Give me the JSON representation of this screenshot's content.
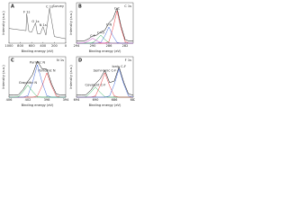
{
  "chart_data": [
    {
      "type": "line",
      "panel": "A",
      "title": "Survey",
      "xlabel": "Binding energy (eV)",
      "ylabel": "Intensity (a.u.)",
      "x": [
        1000,
        900,
        800,
        700,
        688,
        650,
        600,
        532,
        500,
        450,
        400,
        350,
        285,
        200,
        100,
        0
      ],
      "xlim": [
        1000,
        0
      ],
      "ylim": [
        0,
        110
      ],
      "xticks": [
        1000,
        800,
        600,
        400,
        200,
        0
      ],
      "series": [
        {
          "color": "#555555",
          "values": [
            40,
            38,
            36,
            34,
            80,
            32,
            30,
            55,
            26,
            25,
            45,
            22,
            95,
            18,
            15,
            12
          ]
        }
      ],
      "annotations": [
        {
          "text": "F 1s",
          "x": 688,
          "y": 84
        },
        {
          "text": "O 1s",
          "x": 532,
          "y": 59
        },
        {
          "text": "N 1s",
          "x": 400,
          "y": 49
        },
        {
          "text": "C 1s",
          "x": 285,
          "y": 99
        }
      ]
    },
    {
      "type": "line",
      "panel": "B",
      "title": "C 1s",
      "xlabel": "Binding energy (eV)",
      "ylabel": "Intensity (a.u.)",
      "x": [
        294,
        293,
        292,
        291,
        290,
        289,
        288,
        287,
        286,
        285,
        284,
        283,
        282,
        281,
        280
      ],
      "xlim": [
        294,
        280
      ],
      "ylim": [
        0,
        100
      ],
      "xticks": [
        294,
        290,
        286,
        282
      ],
      "series": [
        {
          "color": "#000000",
          "values": [
            5,
            5,
            6,
            11,
            18,
            20,
            28,
            32,
            50,
            60,
            87,
            42,
            9,
            5,
            5
          ]
        },
        {
          "name": "C-C",
          "color": "#e8262a",
          "values": [
            0,
            0,
            0,
            0,
            0,
            0,
            0,
            0,
            4,
            37,
            80,
            37,
            4,
            0,
            0
          ]
        },
        {
          "name": "C-N",
          "color": "#2a56d6",
          "values": [
            0,
            0,
            0,
            0,
            0,
            0,
            2,
            18,
            40,
            18,
            2,
            0,
            0,
            0,
            0
          ]
        },
        {
          "name": "C=O",
          "color": "#1aa84a",
          "values": [
            0,
            0,
            0,
            0,
            1,
            9,
            20,
            9,
            1,
            0,
            0,
            0,
            0,
            0,
            0
          ]
        },
        {
          "name": "C-F",
          "color": "#c429c4",
          "values": [
            0,
            0,
            1,
            6,
            12,
            6,
            1,
            0,
            0,
            0,
            0,
            0,
            0,
            0,
            0
          ]
        }
      ]
    },
    {
      "type": "line",
      "panel": "C",
      "title": "N 1s",
      "xlabel": "Binding energy (eV)",
      "ylabel": "Intensity (a.u.)",
      "x": [
        406,
        405,
        404,
        403,
        402,
        401,
        400,
        399,
        398,
        397,
        396,
        395,
        394
      ],
      "xlim": [
        406,
        394
      ],
      "ylim": [
        0,
        100
      ],
      "xticks": [
        406,
        402,
        398,
        394
      ],
      "series": [
        {
          "color": "#000000",
          "values": [
            5,
            5,
            6,
            19,
            39,
            56,
            89,
            70,
            69,
            33,
            8,
            5,
            5
          ]
        },
        {
          "name": "Pyridinic N",
          "color": "#e8262a",
          "values": [
            0,
            0,
            0,
            0,
            0,
            0,
            3,
            28,
            60,
            28,
            3,
            0,
            0
          ]
        },
        {
          "name": "Pyrrolic N",
          "color": "#2a56d6",
          "values": [
            0,
            0,
            0,
            0,
            4,
            37,
            80,
            37,
            4,
            0,
            0,
            0,
            0
          ]
        },
        {
          "name": "Graphitic N",
          "color": "#1aa84a",
          "values": [
            0,
            0,
            1,
            14,
            30,
            14,
            1,
            0,
            0,
            0,
            0,
            0,
            0
          ]
        }
      ]
    },
    {
      "type": "line",
      "panel": "D",
      "title": "F 1s",
      "xlabel": "Binding energy (eV)",
      "ylabel": "Intensity (a.u.)",
      "x": [
        694,
        693,
        692,
        691,
        690,
        689,
        688,
        687,
        686,
        685,
        684,
        683,
        682
      ],
      "xlim": [
        694,
        682
      ],
      "ylim": [
        0,
        100
      ],
      "xticks": [
        694,
        690,
        686,
        682
      ],
      "series": [
        {
          "color": "#000000",
          "values": [
            5,
            5,
            6,
            17,
            33,
            45,
            66,
            36,
            40,
            75,
            37,
            8,
            5
          ]
        },
        {
          "name": "Covalent C-F",
          "color": "#1aa84a",
          "values": [
            0,
            0,
            1,
            12,
            25,
            12,
            1,
            0,
            0,
            0,
            0,
            0,
            0
          ]
        },
        {
          "name": "Semi-ionic C-F",
          "color": "#e8262a",
          "values": [
            0,
            0,
            0,
            0,
            3,
            28,
            60,
            28,
            3,
            0,
            0,
            0,
            0
          ]
        },
        {
          "name": "Ionic C-F",
          "color": "#2a56d6",
          "values": [
            0,
            0,
            0,
            0,
            0,
            0,
            0,
            3,
            32,
            70,
            32,
            3,
            0
          ]
        }
      ]
    }
  ]
}
